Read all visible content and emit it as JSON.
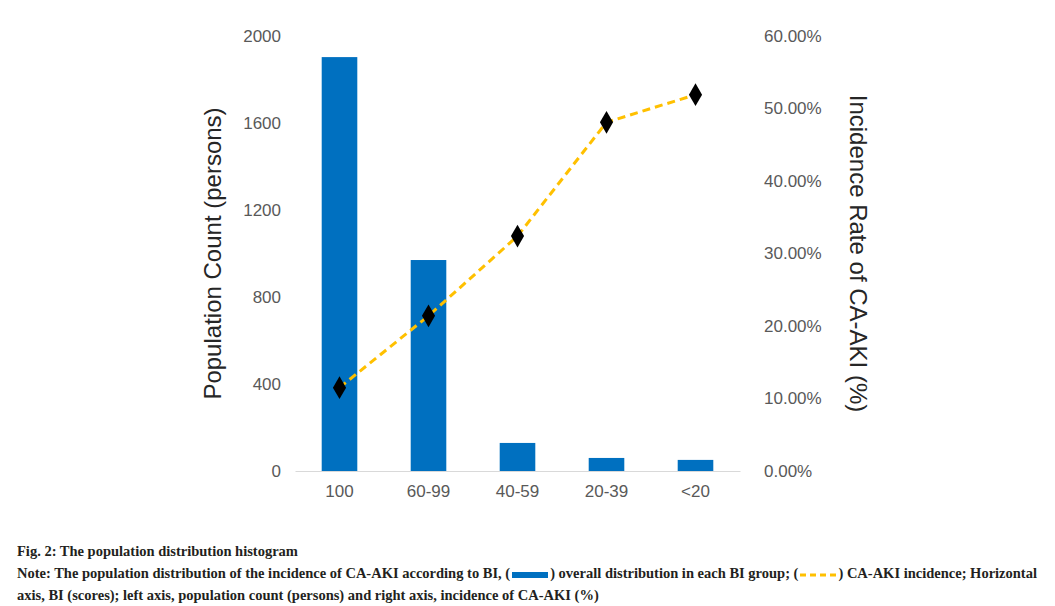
{
  "chart_data": {
    "type": "bar",
    "title": "Fig. 2: The population distribution histogram",
    "annotations": [
      "Note: The population distribution of the incidence of CA-AKI according to BI, (",
      ") overall distribution in each BI group; (",
      ") CA-AKI incidence; Horizontal axis, BI (scores); left axis, population count (persons) and right axis, incidence of CA-AKI (%)"
    ],
    "categories": [
      "100",
      "60-99",
      "40-59",
      "20-39",
      "<20"
    ],
    "ylabel": "Population Count (persons)",
    "y2label": "Incidence Rate of CA-AKI (%)",
    "series": [
      {
        "type": "bar",
        "color": "#0070c0",
        "values": [
          1903,
          970,
          129,
          60,
          51
        ]
      },
      {
        "type": "line",
        "axis": "y2",
        "color": "#ffc000",
        "marker": "diamond",
        "line_style": "dashed",
        "values": [
          11.5,
          21.4,
          32.4,
          48.1,
          51.9
        ]
      }
    ],
    "ylim": [
      0,
      2000
    ],
    "yticks": [
      0,
      400,
      800,
      1200,
      1600,
      2000
    ],
    "y2lim": [
      0,
      60
    ],
    "y2ticks": [
      {
        "value": 0,
        "label": "0.00%"
      },
      {
        "value": 10,
        "label": "10.00%"
      },
      {
        "value": 20,
        "label": "20.00%"
      },
      {
        "value": 30,
        "label": "30.00%"
      },
      {
        "value": 40,
        "label": "40.00%"
      },
      {
        "value": 50,
        "label": "50.00%"
      },
      {
        "value": 60,
        "label": "60.00%"
      }
    ],
    "grid": false
  }
}
